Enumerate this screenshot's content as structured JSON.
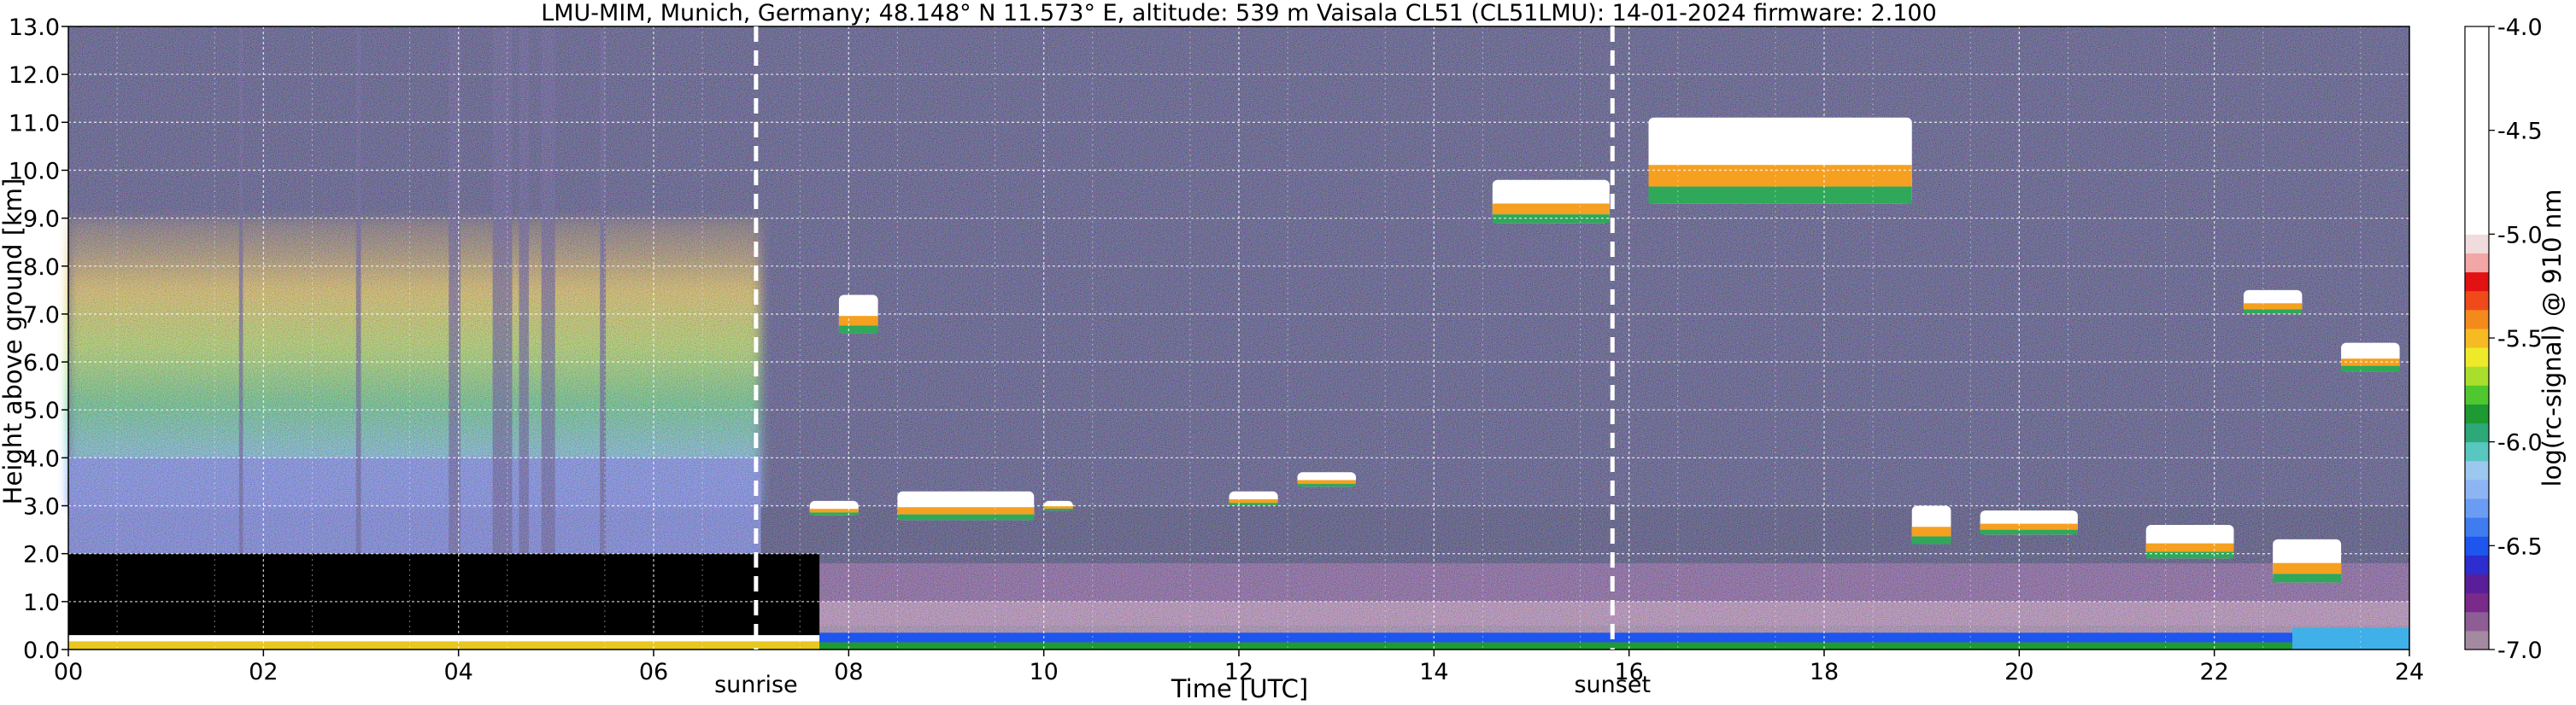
{
  "chart_data": {
    "type": "heatmap",
    "title": "LMU-MIM, Munich, Germany; 48.148° N 11.573° E, altitude: 539 m    Vaisala CL51 (CL51LMU): 14-01-2024    firmware: 2.100",
    "xlabel": "Time [UTC]",
    "ylabel": "Height above ground [km]",
    "xlim": [
      0,
      24
    ],
    "ylim": [
      0,
      13
    ],
    "x_ticks": [
      "00",
      "02",
      "04",
      "06",
      "08",
      "10",
      "12",
      "14",
      "16",
      "18",
      "20",
      "22",
      "24"
    ],
    "x_tick_values": [
      0,
      2,
      4,
      6,
      8,
      10,
      12,
      14,
      16,
      18,
      20,
      22,
      24
    ],
    "y_ticks": [
      "0.0",
      "1.0",
      "2.0",
      "3.0",
      "4.0",
      "5.0",
      "6.0",
      "7.0",
      "8.0",
      "9.0",
      "10.0",
      "11.0",
      "12.0",
      "13.0"
    ],
    "y_tick_values": [
      0,
      1,
      2,
      3,
      4,
      5,
      6,
      7,
      8,
      9,
      10,
      11,
      12,
      13
    ],
    "grid": true,
    "markers": [
      {
        "label": "sunrise",
        "x": 7.05
      },
      {
        "label": "sunset",
        "x": 15.83
      }
    ],
    "colorbar": {
      "label": "log(rc-signal) @ 910 nm",
      "range": [
        -7.0,
        -4.0
      ],
      "ticks": [
        "-4.0",
        "-4.5",
        "-5.0",
        "-5.5",
        "-6.0",
        "-6.5",
        "-7.0"
      ],
      "tick_values": [
        -4.0,
        -4.5,
        -5.0,
        -5.5,
        -6.0,
        -6.5,
        -7.0
      ],
      "colors": [
        "#a48aa0",
        "#8e5d95",
        "#7a2a8a",
        "#5a1e9a",
        "#2d2dd0",
        "#1e55ee",
        "#3f7cf0",
        "#6a9cf4",
        "#8db5f4",
        "#9cc7ef",
        "#57c7c0",
        "#2da879",
        "#1e9a32",
        "#4ec82e",
        "#a9df2c",
        "#eeea2a",
        "#f6bb22",
        "#f58a1c",
        "#f04a1a",
        "#e21212",
        "#f2a6a6",
        "#f0dcdc",
        "#ffffff"
      ]
    },
    "cloud_layers": [
      {
        "t0": 7.6,
        "t1": 8.1,
        "h0": 2.8,
        "h1": 3.1
      },
      {
        "t0": 8.5,
        "t1": 9.9,
        "h0": 2.7,
        "h1": 3.3
      },
      {
        "t0": 10.0,
        "t1": 10.3,
        "h0": 2.9,
        "h1": 3.1
      },
      {
        "t0": 11.9,
        "t1": 12.4,
        "h0": 3.0,
        "h1": 3.3
      },
      {
        "t0": 12.6,
        "t1": 13.2,
        "h0": 3.4,
        "h1": 3.7
      },
      {
        "t0": 7.9,
        "t1": 8.3,
        "h0": 6.6,
        "h1": 7.4
      },
      {
        "t0": 14.6,
        "t1": 15.8,
        "h0": 8.9,
        "h1": 9.8
      },
      {
        "t0": 16.2,
        "t1": 18.9,
        "h0": 9.3,
        "h1": 11.1
      },
      {
        "t0": 18.9,
        "t1": 19.3,
        "h0": 2.2,
        "h1": 3.0
      },
      {
        "t0": 19.6,
        "t1": 20.6,
        "h0": 2.4,
        "h1": 2.9
      },
      {
        "t0": 21.3,
        "t1": 22.2,
        "h0": 1.9,
        "h1": 2.6
      },
      {
        "t0": 22.6,
        "t1": 23.3,
        "h0": 1.4,
        "h1": 2.3
      },
      {
        "t0": 22.3,
        "t1": 22.9,
        "h0": 7.0,
        "h1": 7.5
      },
      {
        "t0": 23.3,
        "t1": 23.9,
        "h0": 5.8,
        "h1": 6.4
      }
    ]
  }
}
